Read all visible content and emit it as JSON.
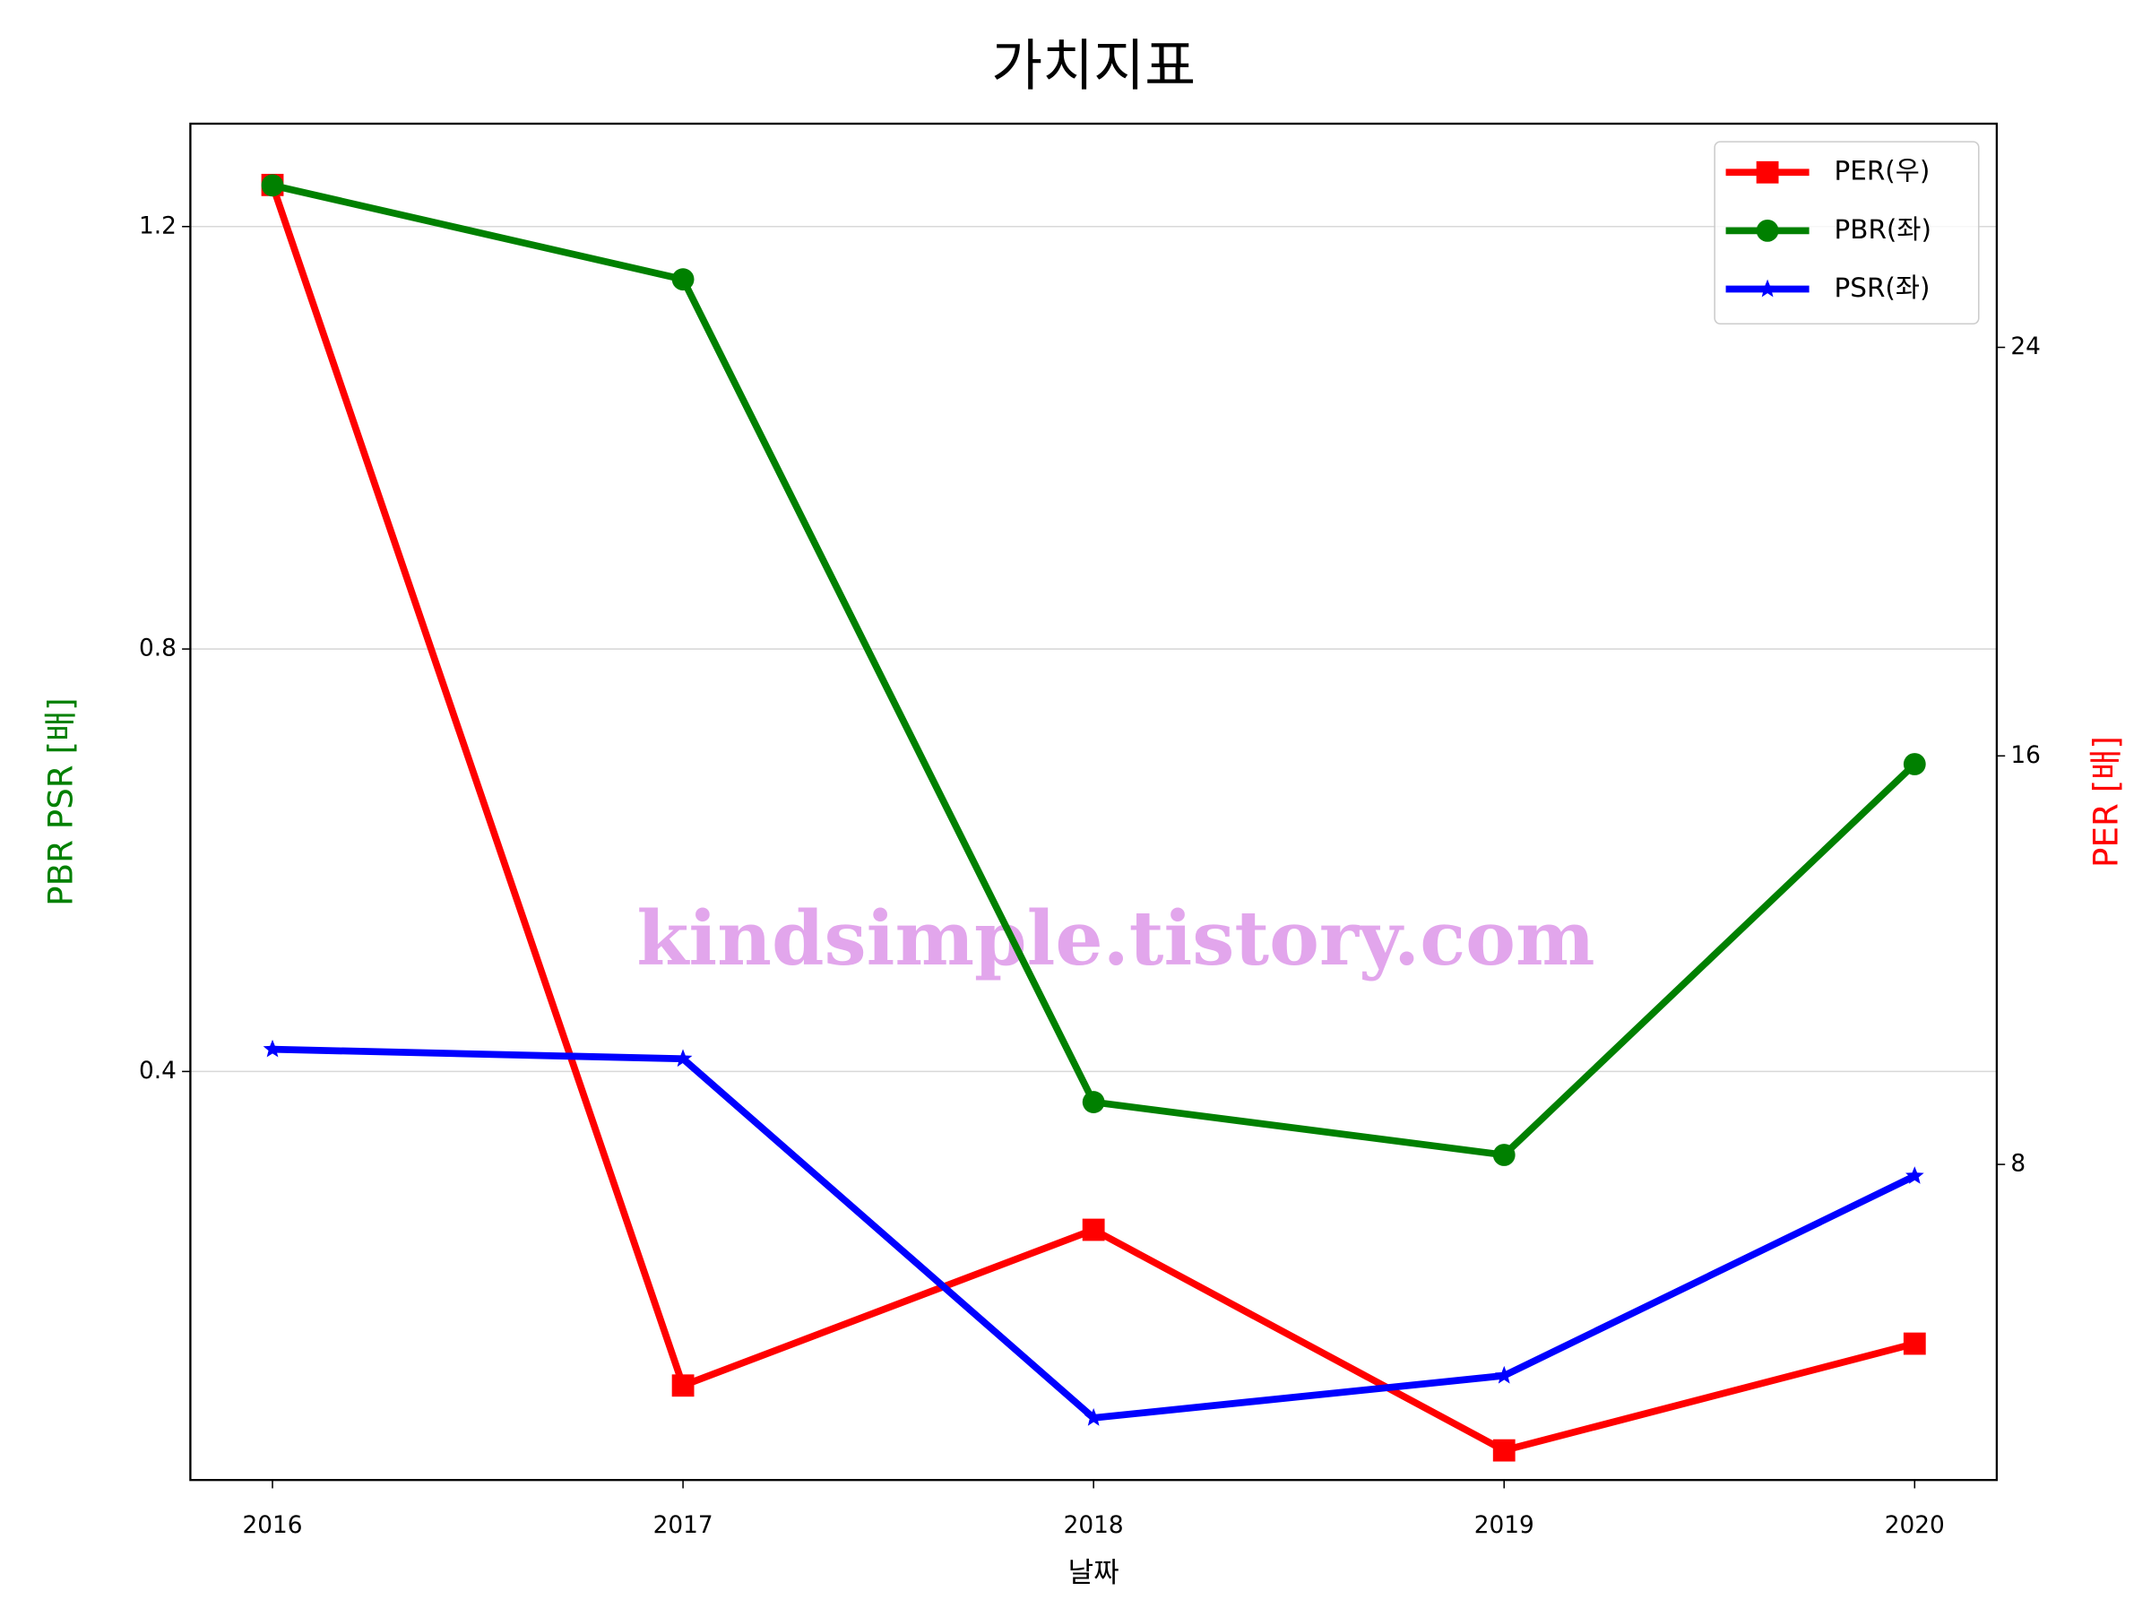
{
  "chart_data": {
    "type": "line",
    "title": "가치지표",
    "xlabel": "날짜",
    "ylabel": "PBR PSR [배]",
    "y2label": "PER [배]",
    "annotation": "kindsimple.tistory.com",
    "x": [
      2016,
      2017,
      2018,
      2019,
      2020
    ],
    "xlim": [
      2015.8,
      2020.2
    ],
    "xticks": [
      2016,
      2017,
      2018,
      2019,
      2020
    ],
    "ylim": [
      0.0132,
      1.2974
    ],
    "yticks": [
      0.4,
      0.8,
      1.2
    ],
    "y2lim": [
      1.82,
      28.38
    ],
    "y2ticks": [
      8,
      16,
      24
    ],
    "grid": true,
    "legend": "upper right",
    "series": [
      {
        "name": "PER(우)",
        "color": "#ff0000",
        "marker": "square",
        "axis": "y2",
        "values": [
          27.18,
          3.67,
          6.72,
          2.4,
          4.49
        ]
      },
      {
        "name": "PBR(좌)",
        "color": "#008000",
        "marker": "circle",
        "axis": "y",
        "values": [
          1.239,
          1.15,
          0.371,
          0.321,
          0.691
        ]
      },
      {
        "name": "PSR(좌)",
        "color": "#0000ff",
        "marker": "star",
        "axis": "y",
        "values": [
          0.421,
          0.412,
          0.072,
          0.112,
          0.301
        ]
      }
    ]
  }
}
